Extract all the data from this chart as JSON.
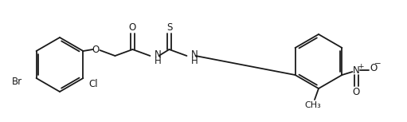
{
  "background_color": "#ffffff",
  "line_color": "#1a1a1a",
  "line_width": 1.3,
  "font_size": 8.5,
  "fig_width": 5.11,
  "fig_height": 1.53,
  "dpi": 100,
  "xlim": [
    0,
    511
  ],
  "ylim": [
    0,
    153
  ]
}
